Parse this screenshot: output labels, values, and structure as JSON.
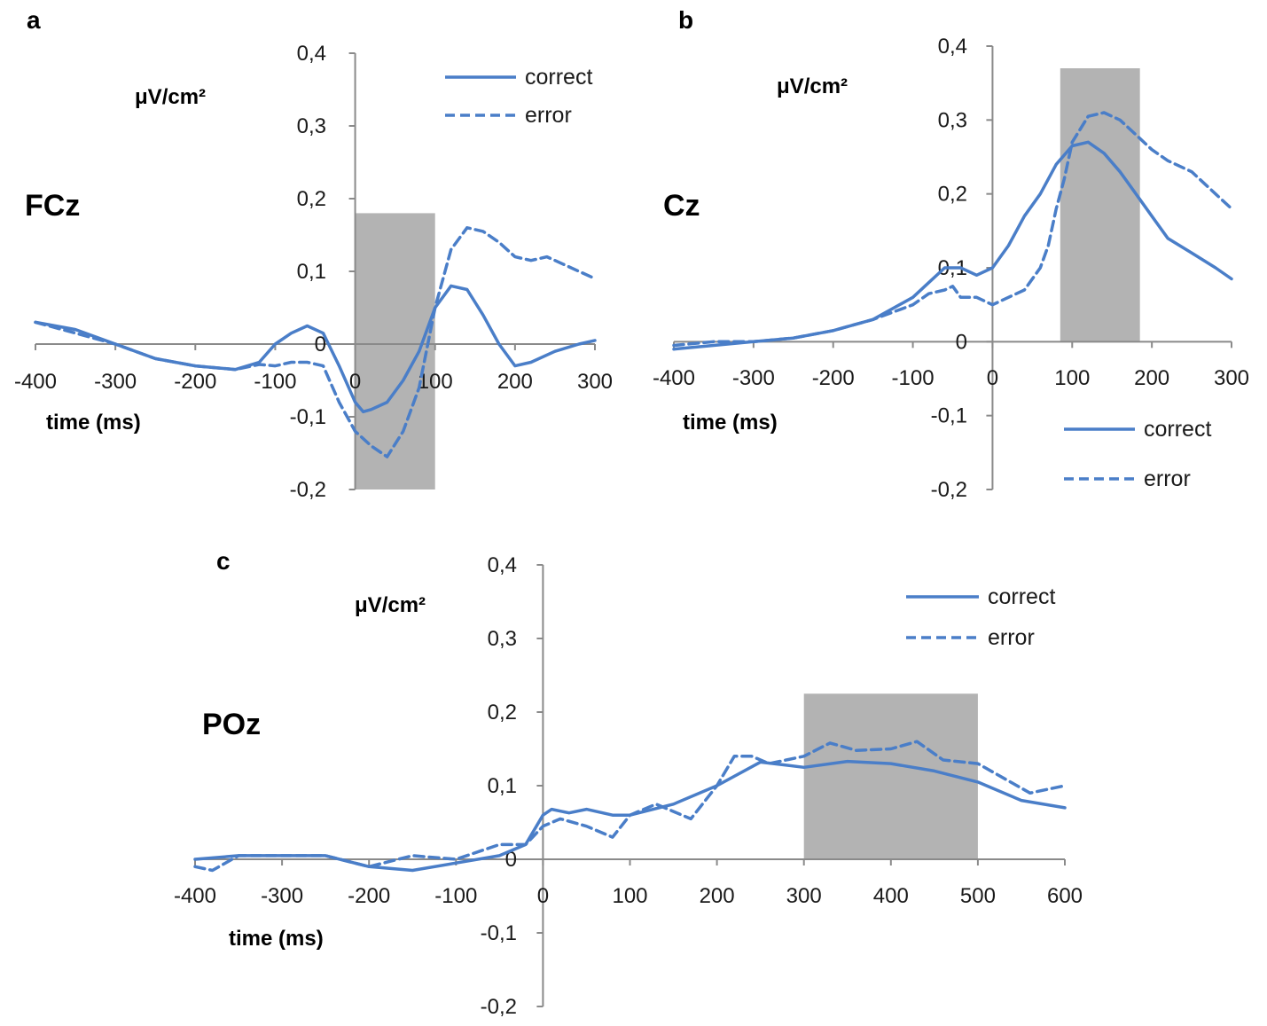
{
  "colors": {
    "line": "#4a7ec8",
    "window": "#b3b3b3",
    "axis": "#8a8a8a"
  },
  "chart_data": [
    {
      "type": "line",
      "panel": "a",
      "electrode": "FCz",
      "ylabel": "μV/cm²",
      "xlabel": "time (ms)",
      "xlim": [
        -400,
        300
      ],
      "ylim": [
        -0.2,
        0.4
      ],
      "x_ticks": [
        -400,
        -300,
        -200,
        -100,
        0,
        100,
        200,
        300
      ],
      "x_tick_labels": [
        "-400",
        "-300",
        "-200",
        "-100",
        "0",
        "100",
        "200",
        "300"
      ],
      "y_ticks": [
        -0.2,
        -0.1,
        0,
        0.1,
        0.2,
        0.3,
        0.4
      ],
      "y_tick_labels": [
        "-0,2",
        "-0,1",
        "0",
        "0,1",
        "0,2",
        "0,3",
        "0,4"
      ],
      "legend_position": "top-right",
      "shaded_window": {
        "x": [
          0,
          100
        ],
        "y": [
          -0.2,
          0.18
        ]
      },
      "series": [
        {
          "name": "correct",
          "style": "solid",
          "x": [
            -400,
            -350,
            -300,
            -250,
            -200,
            -150,
            -120,
            -100,
            -80,
            -60,
            -40,
            -20,
            0,
            10,
            20,
            40,
            60,
            80,
            100,
            120,
            140,
            160,
            180,
            200,
            220,
            250,
            280,
            300
          ],
          "y": [
            0.03,
            0.02,
            0.0,
            -0.02,
            -0.03,
            -0.035,
            -0.025,
            0.0,
            0.015,
            0.025,
            0.015,
            -0.03,
            -0.08,
            -0.093,
            -0.09,
            -0.08,
            -0.05,
            -0.01,
            0.05,
            0.08,
            0.075,
            0.04,
            0.0,
            -0.03,
            -0.025,
            -0.01,
            0.0,
            0.005
          ]
        },
        {
          "name": "error",
          "style": "dashed",
          "x": [
            -400,
            -350,
            -300,
            -250,
            -200,
            -150,
            -120,
            -100,
            -80,
            -60,
            -40,
            -20,
            0,
            20,
            40,
            60,
            80,
            100,
            120,
            140,
            160,
            180,
            200,
            220,
            240,
            260,
            280,
            300
          ],
          "y": [
            0.03,
            0.015,
            0.0,
            -0.02,
            -0.03,
            -0.035,
            -0.028,
            -0.03,
            -0.025,
            -0.025,
            -0.03,
            -0.08,
            -0.12,
            -0.14,
            -0.155,
            -0.12,
            -0.06,
            0.05,
            0.13,
            0.16,
            0.155,
            0.14,
            0.12,
            0.115,
            0.12,
            0.11,
            0.1,
            0.09
          ]
        }
      ]
    },
    {
      "type": "line",
      "panel": "b",
      "electrode": "Cz",
      "ylabel": "μV/cm²",
      "xlabel": "time (ms)",
      "xlim": [
        -400,
        300
      ],
      "ylim": [
        -0.2,
        0.4
      ],
      "x_ticks": [
        -400,
        -300,
        -200,
        -100,
        0,
        100,
        200,
        300
      ],
      "x_tick_labels": [
        "-400",
        "-300",
        "-200",
        "-100",
        "0",
        "100",
        "200",
        "300"
      ],
      "y_ticks": [
        -0.2,
        -0.1,
        0,
        0.1,
        0.2,
        0.3,
        0.4
      ],
      "y_tick_labels": [
        "-0,2",
        "-0,1",
        "0",
        "0,1",
        "0,2",
        "0,3",
        "0,4"
      ],
      "legend_position": "bottom-right",
      "shaded_window": {
        "x": [
          85,
          185
        ],
        "y": [
          0,
          0.37
        ]
      },
      "series": [
        {
          "name": "correct",
          "style": "solid",
          "x": [
            -400,
            -350,
            -300,
            -250,
            -200,
            -150,
            -100,
            -80,
            -60,
            -40,
            -20,
            0,
            20,
            40,
            60,
            80,
            100,
            120,
            140,
            160,
            180,
            200,
            220,
            250,
            280,
            300
          ],
          "y": [
            -0.01,
            -0.005,
            0.0,
            0.005,
            0.015,
            0.03,
            0.06,
            0.08,
            0.1,
            0.1,
            0.09,
            0.1,
            0.13,
            0.17,
            0.2,
            0.24,
            0.265,
            0.27,
            0.255,
            0.23,
            0.2,
            0.17,
            0.14,
            0.12,
            0.1,
            0.085
          ]
        },
        {
          "name": "error",
          "style": "dashed",
          "x": [
            -400,
            -350,
            -300,
            -250,
            -200,
            -150,
            -100,
            -80,
            -60,
            -50,
            -40,
            -20,
            0,
            20,
            40,
            60,
            70,
            80,
            90,
            100,
            120,
            140,
            160,
            180,
            200,
            220,
            250,
            280,
            300
          ],
          "y": [
            -0.005,
            0.0,
            0.0,
            0.005,
            0.015,
            0.03,
            0.05,
            0.065,
            0.07,
            0.075,
            0.06,
            0.06,
            0.05,
            0.06,
            0.07,
            0.1,
            0.13,
            0.18,
            0.22,
            0.27,
            0.305,
            0.31,
            0.3,
            0.28,
            0.26,
            0.245,
            0.23,
            0.2,
            0.18
          ]
        }
      ]
    },
    {
      "type": "line",
      "panel": "c",
      "electrode": "POz",
      "ylabel": "μV/cm²",
      "xlabel": "time (ms)",
      "xlim": [
        -400,
        600
      ],
      "ylim": [
        -0.2,
        0.4
      ],
      "x_ticks": [
        -400,
        -300,
        -200,
        -100,
        0,
        100,
        200,
        300,
        400,
        500,
        600
      ],
      "x_tick_labels": [
        "-400",
        "-300",
        "-200",
        "-100",
        "0",
        "100",
        "200",
        "300",
        "400",
        "500",
        "600"
      ],
      "y_ticks": [
        -0.2,
        -0.1,
        0,
        0.1,
        0.2,
        0.3,
        0.4
      ],
      "y_tick_labels": [
        "-0,2",
        "-0,1",
        "0",
        "0,1",
        "0,2",
        "0,3",
        "0,4"
      ],
      "legend_position": "top-right",
      "shaded_window": {
        "x": [
          300,
          500
        ],
        "y": [
          0,
          0.225
        ]
      },
      "series": [
        {
          "name": "correct",
          "style": "solid",
          "x": [
            -400,
            -350,
            -300,
            -250,
            -200,
            -150,
            -100,
            -50,
            -20,
            0,
            10,
            30,
            50,
            80,
            100,
            150,
            200,
            250,
            300,
            350,
            400,
            450,
            500,
            550,
            600
          ],
          "y": [
            0.0,
            0.005,
            0.005,
            0.005,
            -0.01,
            -0.015,
            -0.005,
            0.005,
            0.02,
            0.06,
            0.068,
            0.063,
            0.068,
            0.06,
            0.06,
            0.075,
            0.1,
            0.132,
            0.125,
            0.133,
            0.13,
            0.12,
            0.105,
            0.08,
            0.07
          ]
        },
        {
          "name": "error",
          "style": "dashed",
          "x": [
            -400,
            -380,
            -350,
            -300,
            -250,
            -200,
            -150,
            -100,
            -50,
            -20,
            0,
            20,
            50,
            80,
            100,
            130,
            150,
            170,
            200,
            220,
            240,
            260,
            300,
            330,
            360,
            400,
            430,
            460,
            500,
            530,
            560,
            580,
            600
          ],
          "y": [
            -0.01,
            -0.015,
            0.005,
            0.005,
            0.005,
            -0.01,
            0.005,
            0.0,
            0.02,
            0.02,
            0.045,
            0.055,
            0.045,
            0.03,
            0.06,
            0.075,
            0.065,
            0.055,
            0.1,
            0.14,
            0.14,
            0.13,
            0.14,
            0.158,
            0.148,
            0.15,
            0.16,
            0.135,
            0.13,
            0.11,
            0.09,
            0.095,
            0.1
          ]
        }
      ]
    }
  ]
}
